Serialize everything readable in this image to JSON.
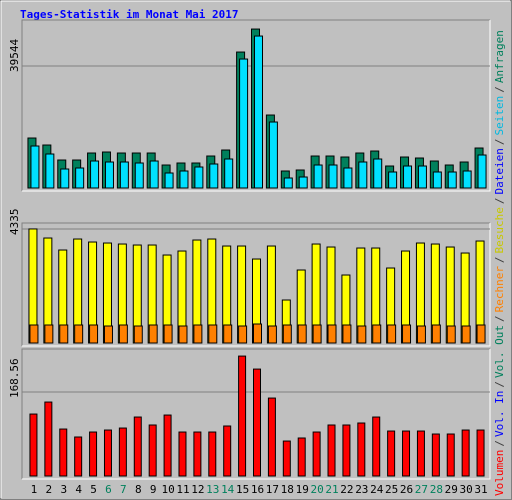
{
  "chart_data": [
    {
      "type": "bar",
      "title": "Tages-Statistik im Monat Mai 2017",
      "series": [
        {
          "name": "Anfragen",
          "color": "#00805c",
          "values": [
            16200,
            13932,
            9072,
            9072,
            11340,
            11664,
            11340,
            11340,
            11340,
            7452,
            8100,
            8100,
            10368,
            12312,
            44064,
            51516,
            23652,
            5508,
            5832,
            10368,
            10368,
            10044,
            11340,
            11988,
            7128,
            10044,
            9720,
            8748,
            7452,
            8424,
            12960
          ]
        },
        {
          "name": "Seiten",
          "color": "#00e0ff",
          "values": [
            13608,
            11016,
            6156,
            6480,
            8748,
            8424,
            8424,
            8100,
            8748,
            4860,
            5508,
            6804,
            7776,
            9396,
            41796,
            49248,
            21384,
            3240,
            3564,
            7452,
            7452,
            6480,
            8424,
            9396,
            5184,
            7128,
            7128,
            5184,
            5184,
            5508,
            10692
          ]
        }
      ],
      "legend_only": [
        {
          "name": "Dateien",
          "color": "#0000ff"
        }
      ],
      "ylim": [
        0,
        53800
      ],
      "yticks": [
        39544
      ],
      "grid": true
    },
    {
      "type": "bar",
      "series": [
        {
          "name": "Besuche",
          "color": "#ffff00",
          "values": [
            4335,
            3990,
            3534,
            3952,
            3838,
            3800,
            3762,
            3724,
            3724,
            3344,
            3496,
            3914,
            3952,
            3686,
            3686,
            3192,
            3686,
            1634,
            2774,
            3762,
            3648,
            2584,
            3610,
            3610,
            2850,
            3496,
            3800,
            3762,
            3648,
            3420,
            3876
          ]
        },
        {
          "name": "Rechner",
          "color": "#ff8000",
          "values": [
            684,
            684,
            684,
            684,
            684,
            646,
            684,
            646,
            684,
            684,
            646,
            684,
            684,
            684,
            646,
            722,
            646,
            684,
            684,
            684,
            684,
            684,
            646,
            684,
            684,
            684,
            646,
            684,
            646,
            646,
            684
          ]
        }
      ],
      "ylim": [
        0,
        4485
      ],
      "yticks": [
        4335
      ],
      "grid": true
    },
    {
      "type": "bar",
      "categories": [
        "1",
        "2",
        "3",
        "4",
        "5",
        "6",
        "7",
        "8",
        "9",
        "10",
        "11",
        "12",
        "13",
        "14",
        "15",
        "16",
        "17",
        "18",
        "19",
        "20",
        "21",
        "22",
        "23",
        "24",
        "25",
        "26",
        "27",
        "28",
        "29",
        "30",
        "31"
      ],
      "category_colors": [
        "#000000",
        "#000000",
        "#000000",
        "#000000",
        "#000000",
        "#00805c",
        "#00805c",
        "#000000",
        "#000000",
        "#000000",
        "#000000",
        "#000000",
        "#00805c",
        "#00805c",
        "#000000",
        "#000000",
        "#000000",
        "#000000",
        "#000000",
        "#00805c",
        "#00805c",
        "#000000",
        "#000000",
        "#000000",
        "#000000",
        "#000000",
        "#00805c",
        "#00805c",
        "#000000",
        "#000000",
        "#000000"
      ],
      "series": [
        {
          "name": "Volumen",
          "color": "#ff0000",
          "values": [
            124.4,
            148.5,
            94.3,
            78.3,
            88.3,
            92.3,
            96.3,
            118.4,
            102.4,
            122.4,
            88.3,
            88.3,
            88.3,
            100.4,
            240.8,
            214.7,
            156.5,
            70.2,
            76.3,
            88.3,
            102.4,
            102.4,
            106.4,
            118.4,
            90.3,
            90.3,
            90.3,
            84.3,
            84.3,
            92.3,
            92.3
          ]
        }
      ],
      "legend_only": [
        {
          "name": "Vol. Out",
          "color": "#00805c"
        },
        {
          "name": "Vol. In",
          "color": "#0000ff"
        }
      ],
      "ylim": [
        0,
        249
      ],
      "yticks": [
        168.56
      ],
      "grid": true
    }
  ],
  "legend_separator": "/"
}
